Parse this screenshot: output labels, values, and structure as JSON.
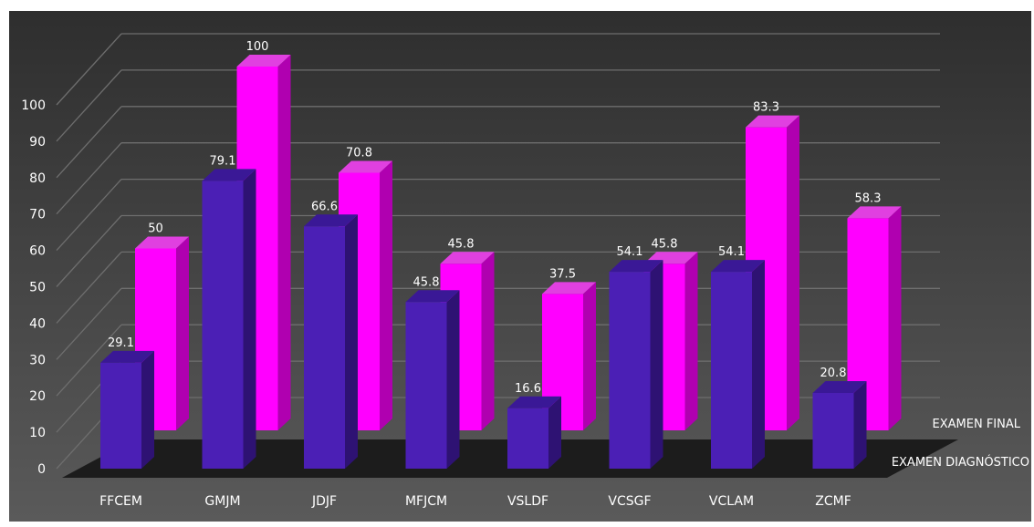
{
  "chart_data": {
    "type": "bar",
    "title": "",
    "xlabel": "",
    "ylabel": "",
    "ylim": [
      0,
      100
    ],
    "yticks": [
      0,
      10,
      20,
      30,
      40,
      50,
      60,
      70,
      80,
      90,
      100
    ],
    "grid": true,
    "legend_placement": "right",
    "categories": [
      "FFCEM",
      "GMJM",
      "JDJF",
      "MFJCM",
      "VSLDF",
      "VCSGF",
      "VCLAM",
      "ZCMF"
    ],
    "series": [
      {
        "name": "EXAMEN DIAGNÓSTICO",
        "values": [
          29.1,
          79.1,
          66.6,
          45.8,
          16.6,
          54.1,
          54.1,
          20.8
        ],
        "color": "#4B1FB5"
      },
      {
        "name": "EXAMEN FINAL",
        "values": [
          50,
          100,
          70.8,
          45.8,
          37.5,
          45.8,
          83.3,
          58.3
        ],
        "color": "#FF00FF"
      }
    ],
    "colors": {
      "background_top": "#303030",
      "background_bottom": "#555555",
      "grid": "#6e6e6e",
      "floor": "#161616"
    }
  }
}
